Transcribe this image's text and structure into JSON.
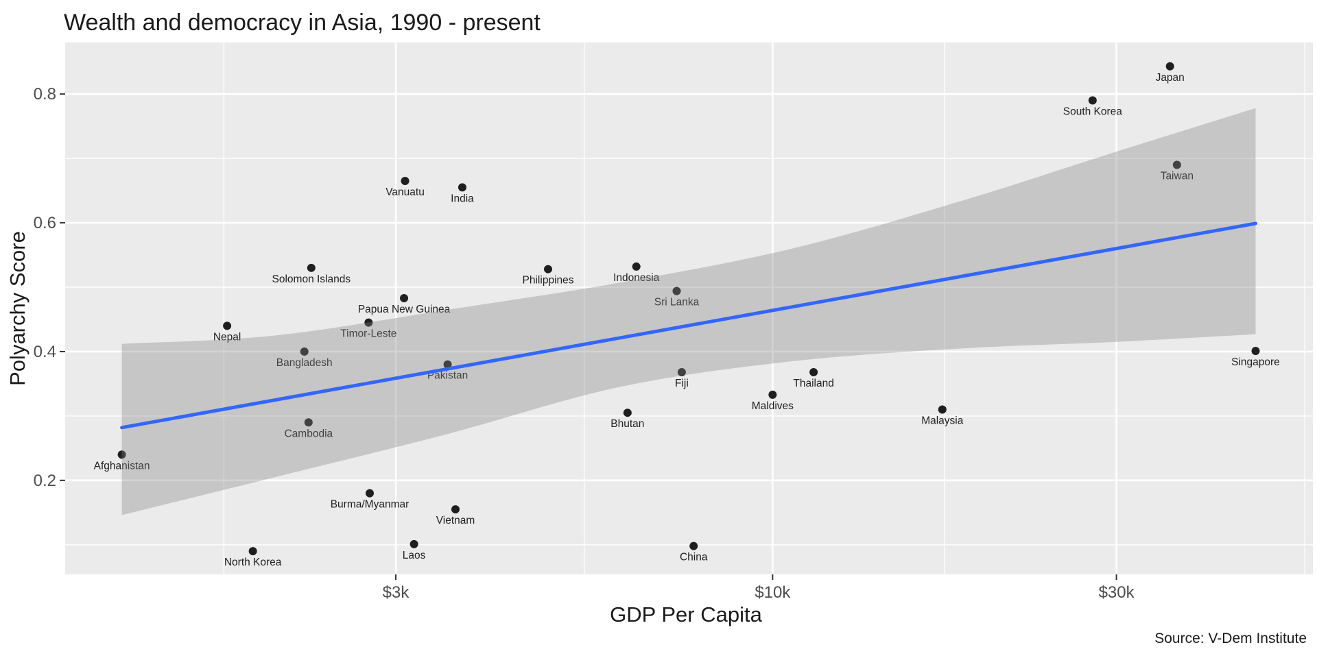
{
  "chart": {
    "panel_bg": "#EBEBEB",
    "grid_color": "#FFFFFF",
    "point_color": "#1F1F1F",
    "label_color": "#1F1F1F",
    "tick_text_color": "#4D4D4D",
    "tick_mark_color": "#333333",
    "title_color": "#1A1A1A",
    "trend_color": "#3366FF",
    "band_color": "#808080",
    "band_opacity": 0.35
  },
  "chart_data": {
    "type": "scatter",
    "title": "Wealth and democracy in Asia, 1990 - present",
    "xlabel": "GDP Per Capita",
    "ylabel": "Polyarchy Score",
    "source_note": "Source: V-Dem Institute",
    "x_scale": "log10",
    "grid": true,
    "xlim": [
      1043,
      56200
    ],
    "ylim": [
      0.054,
      0.88
    ],
    "x_ticks": [
      {
        "value": 3000,
        "label": "$3k"
      },
      {
        "value": 10000,
        "label": "$10k"
      },
      {
        "value": 30000,
        "label": "$30k"
      }
    ],
    "x_minor_gridlines": [
      1732,
      5477,
      17321,
      54772
    ],
    "y_ticks": [
      {
        "value": 0.2,
        "label": "0.2"
      },
      {
        "value": 0.4,
        "label": "0.4"
      },
      {
        "value": 0.6,
        "label": "0.6"
      },
      {
        "value": 0.8,
        "label": "0.8"
      }
    ],
    "y_minor_gridlines": [
      0.1,
      0.3,
      0.5,
      0.7
    ],
    "points": [
      {
        "country": "Afghanistan",
        "gdp": 1250,
        "polyarchy": 0.24
      },
      {
        "country": "North Korea",
        "gdp": 1900,
        "polyarchy": 0.09
      },
      {
        "country": "Nepal",
        "gdp": 1750,
        "polyarchy": 0.44
      },
      {
        "country": "Solomon Islands",
        "gdp": 2290,
        "polyarchy": 0.53
      },
      {
        "country": "Bangladesh",
        "gdp": 2240,
        "polyarchy": 0.4
      },
      {
        "country": "Cambodia",
        "gdp": 2270,
        "polyarchy": 0.29
      },
      {
        "country": "Burma/Myanmar",
        "gdp": 2760,
        "polyarchy": 0.18
      },
      {
        "country": "Timor-Leste",
        "gdp": 2750,
        "polyarchy": 0.445
      },
      {
        "country": "Papua New Guinea",
        "gdp": 3080,
        "polyarchy": 0.483
      },
      {
        "country": "Vanuatu",
        "gdp": 3090,
        "polyarchy": 0.665
      },
      {
        "country": "Laos",
        "gdp": 3180,
        "polyarchy": 0.101
      },
      {
        "country": "Pakistan",
        "gdp": 3540,
        "polyarchy": 0.38
      },
      {
        "country": "Vietnam",
        "gdp": 3630,
        "polyarchy": 0.155
      },
      {
        "country": "India",
        "gdp": 3710,
        "polyarchy": 0.655
      },
      {
        "country": "Philippines",
        "gdp": 4880,
        "polyarchy": 0.528
      },
      {
        "country": "Bhutan",
        "gdp": 6290,
        "polyarchy": 0.305
      },
      {
        "country": "Indonesia",
        "gdp": 6470,
        "polyarchy": 0.532
      },
      {
        "country": "Sri Lanka",
        "gdp": 7360,
        "polyarchy": 0.494
      },
      {
        "country": "Fiji",
        "gdp": 7480,
        "polyarchy": 0.368
      },
      {
        "country": "China",
        "gdp": 7770,
        "polyarchy": 0.098
      },
      {
        "country": "Maldives",
        "gdp": 10000,
        "polyarchy": 0.333
      },
      {
        "country": "Thailand",
        "gdp": 11400,
        "polyarchy": 0.368
      },
      {
        "country": "Malaysia",
        "gdp": 17200,
        "polyarchy": 0.31
      },
      {
        "country": "South Korea",
        "gdp": 27800,
        "polyarchy": 0.79
      },
      {
        "country": "Japan",
        "gdp": 35600,
        "polyarchy": 0.843
      },
      {
        "country": "Taiwan",
        "gdp": 36400,
        "polyarchy": 0.69
      },
      {
        "country": "Singapore",
        "gdp": 46800,
        "polyarchy": 0.401
      }
    ],
    "trend_line": {
      "gdp_start": 1250,
      "polyarchy_start": 0.282,
      "gdp_end": 46800,
      "polyarchy_end": 0.599
    },
    "confidence_band": [
      {
        "gdp": 1250,
        "upper": 0.412,
        "lower": 0.146
      },
      {
        "gdp": 2040,
        "upper": 0.425,
        "lower": 0.205
      },
      {
        "gdp": 3540,
        "upper": 0.465,
        "lower": 0.272
      },
      {
        "gdp": 6130,
        "upper": 0.507,
        "lower": 0.345
      },
      {
        "gdp": 10650,
        "upper": 0.56,
        "lower": 0.385
      },
      {
        "gdp": 18400,
        "upper": 0.635,
        "lower": 0.405
      },
      {
        "gdp": 29900,
        "upper": 0.71,
        "lower": 0.415
      },
      {
        "gdp": 46800,
        "upper": 0.778,
        "lower": 0.427
      }
    ],
    "legend": null
  }
}
